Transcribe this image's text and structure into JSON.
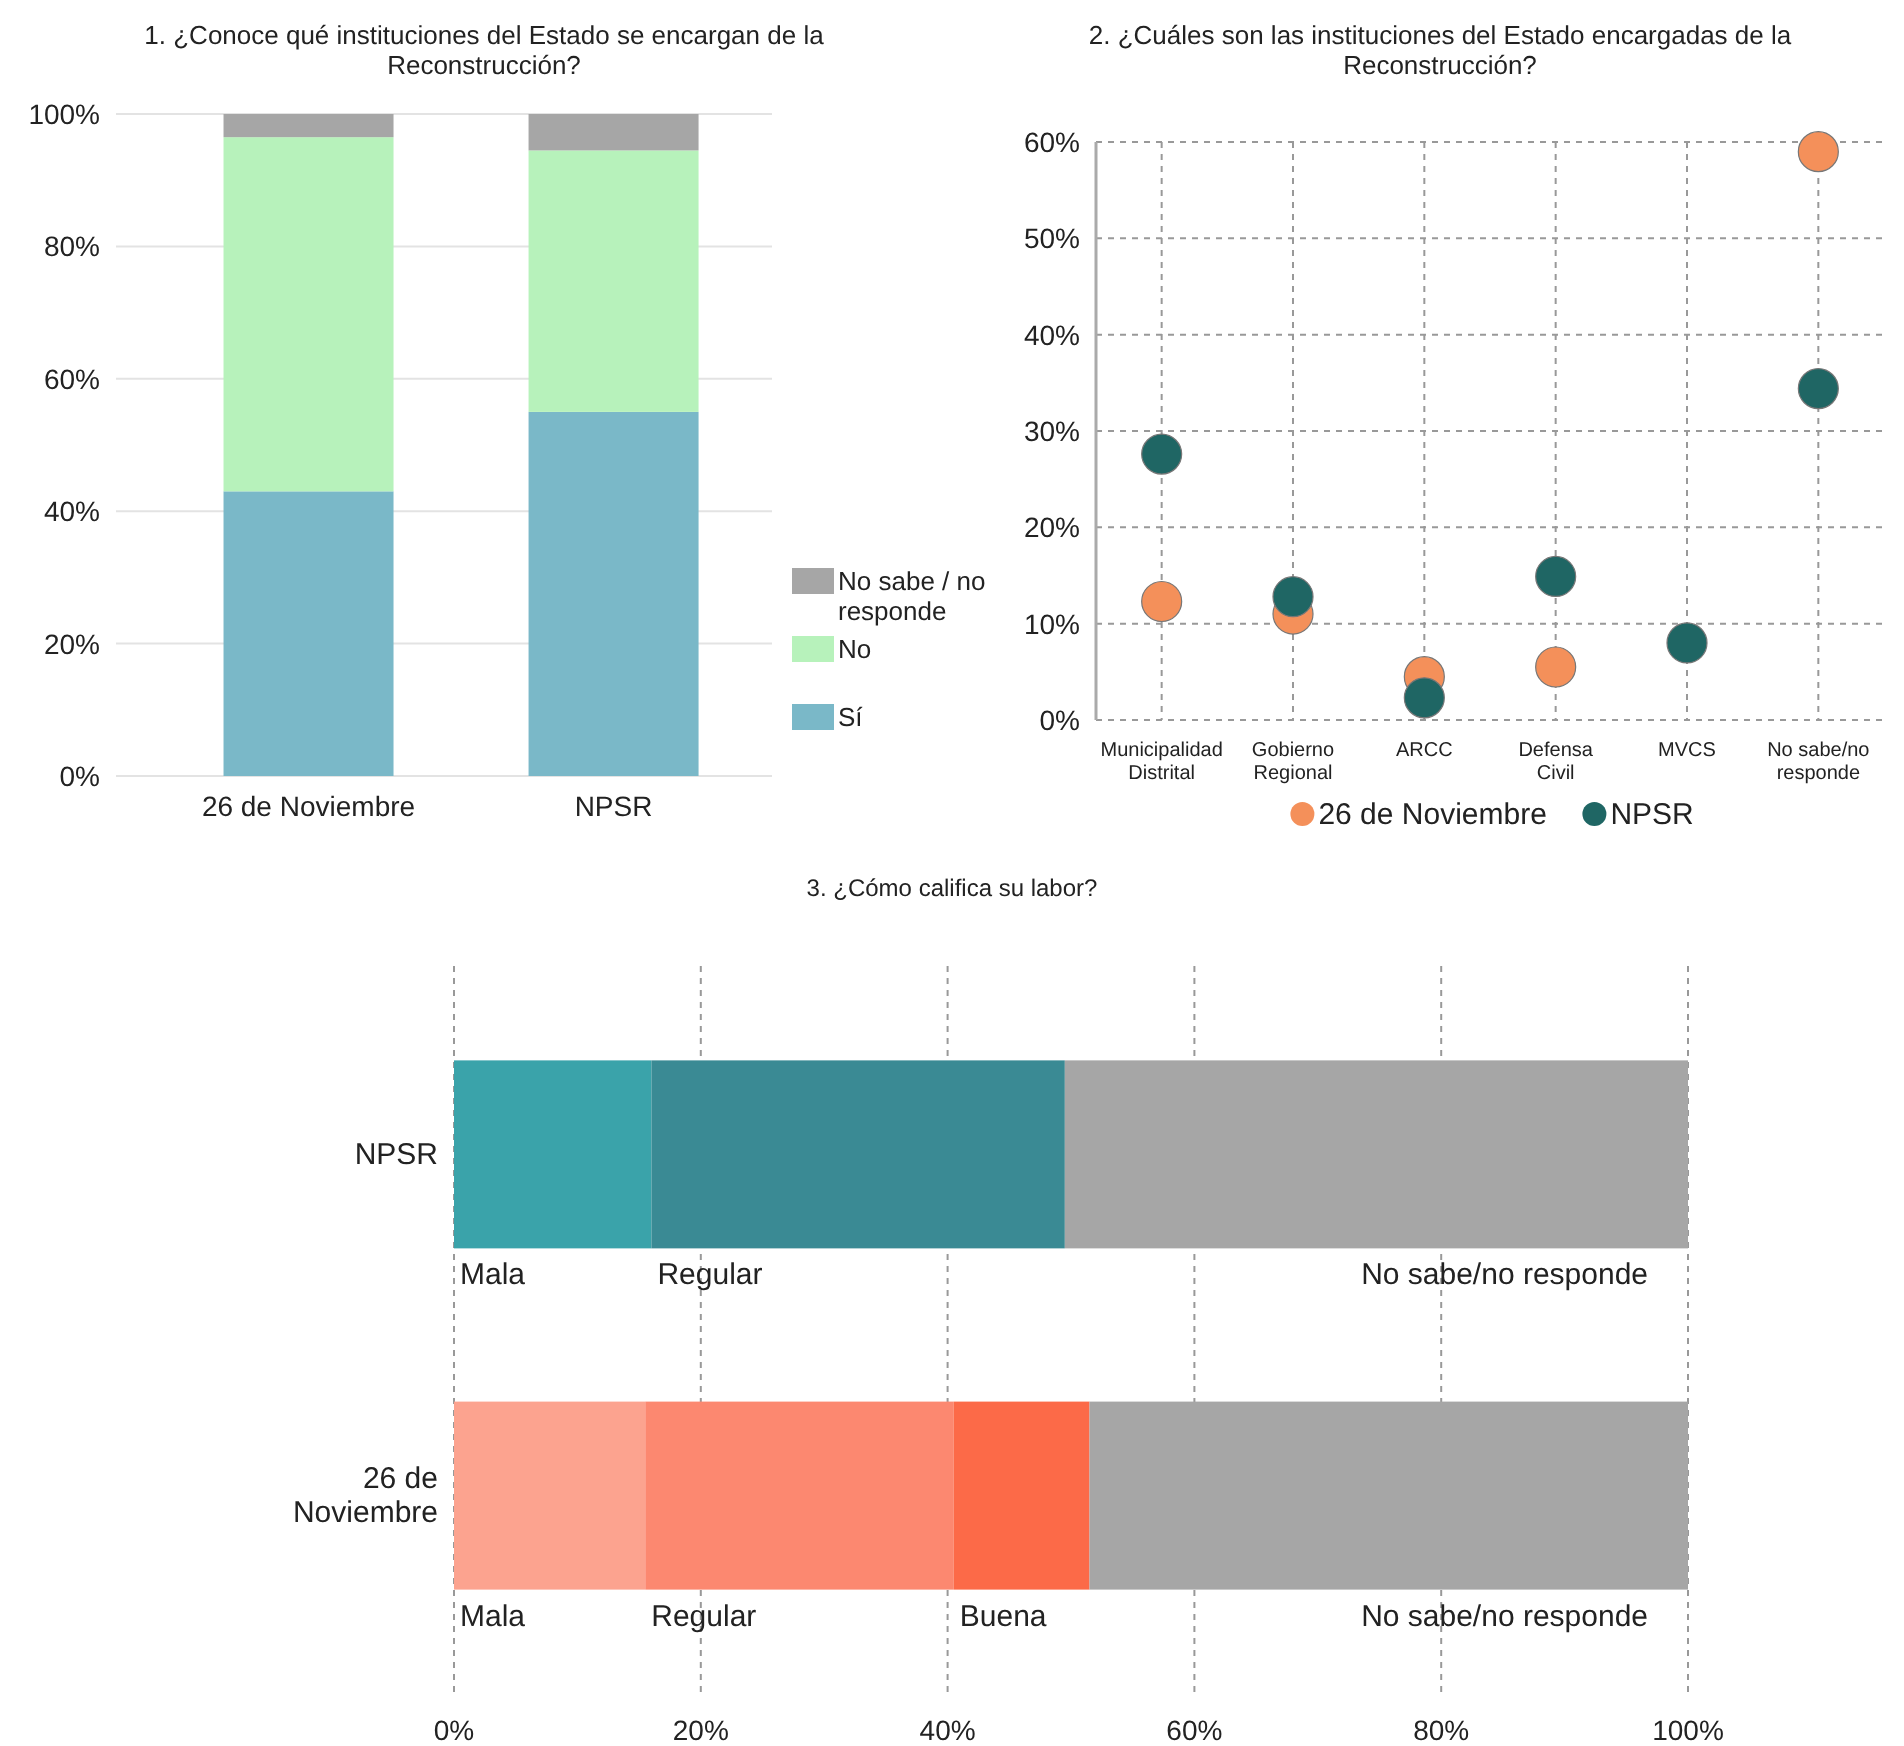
{
  "chart_data": [
    {
      "type": "bar",
      "title": "1. ¿Conoce qué instituciones del Estado se encargan de la Reconstrucción?",
      "categories": [
        "26 de Noviembre",
        "NPSR"
      ],
      "stacked": true,
      "series": [
        {
          "name": "Sí",
          "color": "#7ab8c8",
          "values": [
            43,
            55
          ]
        },
        {
          "name": "No",
          "color": "#b7f2bb",
          "values": [
            53.5,
            39.5
          ]
        },
        {
          "name": "No sabe / no responde",
          "color": "#a6a6a6",
          "values": [
            3.5,
            5.5
          ]
        }
      ],
      "ylim": [
        0,
        100
      ],
      "yticks": [
        {
          "value": 0,
          "label": "0%"
        },
        {
          "value": 20,
          "label": "20%"
        },
        {
          "value": 40,
          "label": "40%"
        },
        {
          "value": 60,
          "label": "60%"
        },
        {
          "value": 80,
          "label": "80%"
        },
        {
          "value": 100,
          "label": "100%"
        }
      ],
      "grid": "y",
      "legend": "right"
    },
    {
      "type": "scatter",
      "title": "2. ¿Cuáles son las instituciones del Estado encargadas de la Reconstrucción?",
      "categories": [
        "Municipalidad Distrital",
        "Gobierno Regional",
        "ARCC",
        "Defensa Civil",
        "MVCS",
        "No sabe/no responde"
      ],
      "series": [
        {
          "name": "26 de Noviembre",
          "color": "#f4905a",
          "values": [
            12.3,
            11,
            4.5,
            5.5,
            null,
            59
          ]
        },
        {
          "name": "NPSR",
          "color": "#1f6664",
          "values": [
            27.6,
            12.8,
            2.3,
            14.9,
            8,
            34.4
          ]
        }
      ],
      "ylim": [
        0,
        60
      ],
      "yticks": [
        {
          "value": 0,
          "label": "0%"
        },
        {
          "value": 10,
          "label": "10%"
        },
        {
          "value": 20,
          "label": "20%"
        },
        {
          "value": 30,
          "label": "30%"
        },
        {
          "value": 40,
          "label": "40%"
        },
        {
          "value": 50,
          "label": "50%"
        },
        {
          "value": 60,
          "label": "60%"
        }
      ],
      "grid": true,
      "legend": "bottom",
      "marker": "circle"
    },
    {
      "type": "bar",
      "title": "3. ¿Cómo califica su labor?",
      "orientation": "horizontal",
      "stacked": true,
      "categories": [
        "NPSR",
        "26 de Noviembre"
      ],
      "series": [
        {
          "name": "Mala",
          "colors": [
            "#3aa3aa",
            "#fca38f"
          ],
          "values": [
            16,
            15.5
          ]
        },
        {
          "name": "Regular",
          "colors": [
            "#3a8a94",
            "#fc8870"
          ],
          "values": [
            33.5,
            25
          ]
        },
        {
          "name": "Buena",
          "colors": [
            null,
            "#fc6a48"
          ],
          "values": [
            null,
            11
          ]
        },
        {
          "name": "No sabe/no responde",
          "colors": [
            "#a6a6a6",
            "#a6a6a6"
          ],
          "values": [
            50.5,
            48.5
          ]
        }
      ],
      "xlim": [
        0,
        100
      ],
      "xticks": [
        {
          "value": 0,
          "label": "0%"
        },
        {
          "value": 20,
          "label": "20%"
        },
        {
          "value": 40,
          "label": "40%"
        },
        {
          "value": 60,
          "label": "60%"
        },
        {
          "value": 80,
          "label": "80%"
        },
        {
          "value": 100,
          "label": "100%"
        }
      ],
      "grid": "x",
      "legend": false
    }
  ]
}
